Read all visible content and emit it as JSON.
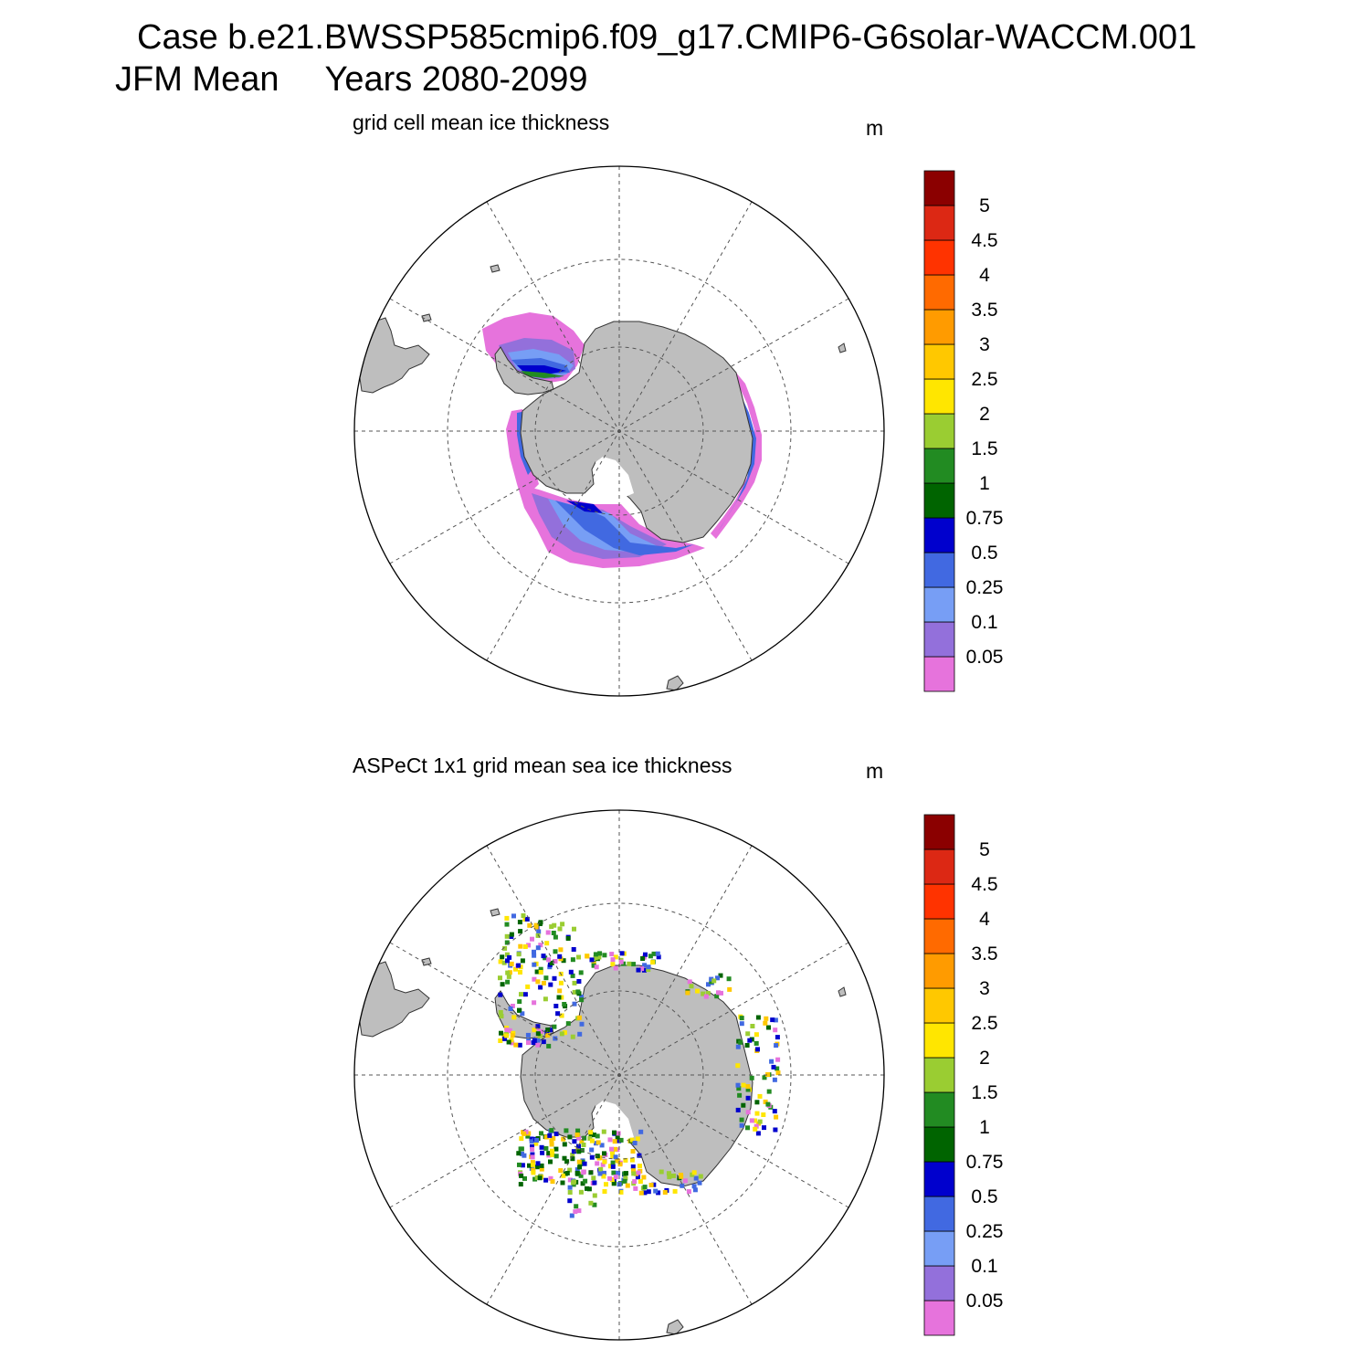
{
  "header": {
    "case_line": "Case b.e21.BWSSP585cmip6.f09_g17.CMIP6-G6solar-WACCM.001",
    "season": "JFM Mean",
    "years": "Years 2080-2099"
  },
  "panels": [
    {
      "title": "grid cell mean ice thickness",
      "units": "m"
    },
    {
      "title": "ASPeCt 1x1 grid mean sea ice thickness",
      "units": "m"
    }
  ],
  "colorbar": {
    "colors": [
      "#e673dc",
      "#9370db",
      "#779ef5",
      "#4169e1",
      "#0000cd",
      "#006400",
      "#228b22",
      "#9acd32",
      "#ffe600",
      "#ffc800",
      "#ff9b00",
      "#ff6a00",
      "#ff3300",
      "#dc2814",
      "#8b0000"
    ],
    "labels": [
      "0.05",
      "0.1",
      "0.25",
      "0.5",
      "0.75",
      "1",
      "1.5",
      "2",
      "2.5",
      "3",
      "3.5",
      "4",
      "4.5",
      "5"
    ]
  },
  "map_colors": {
    "land": "#bebebe",
    "coast": "#333333",
    "grid": "#555555"
  }
}
